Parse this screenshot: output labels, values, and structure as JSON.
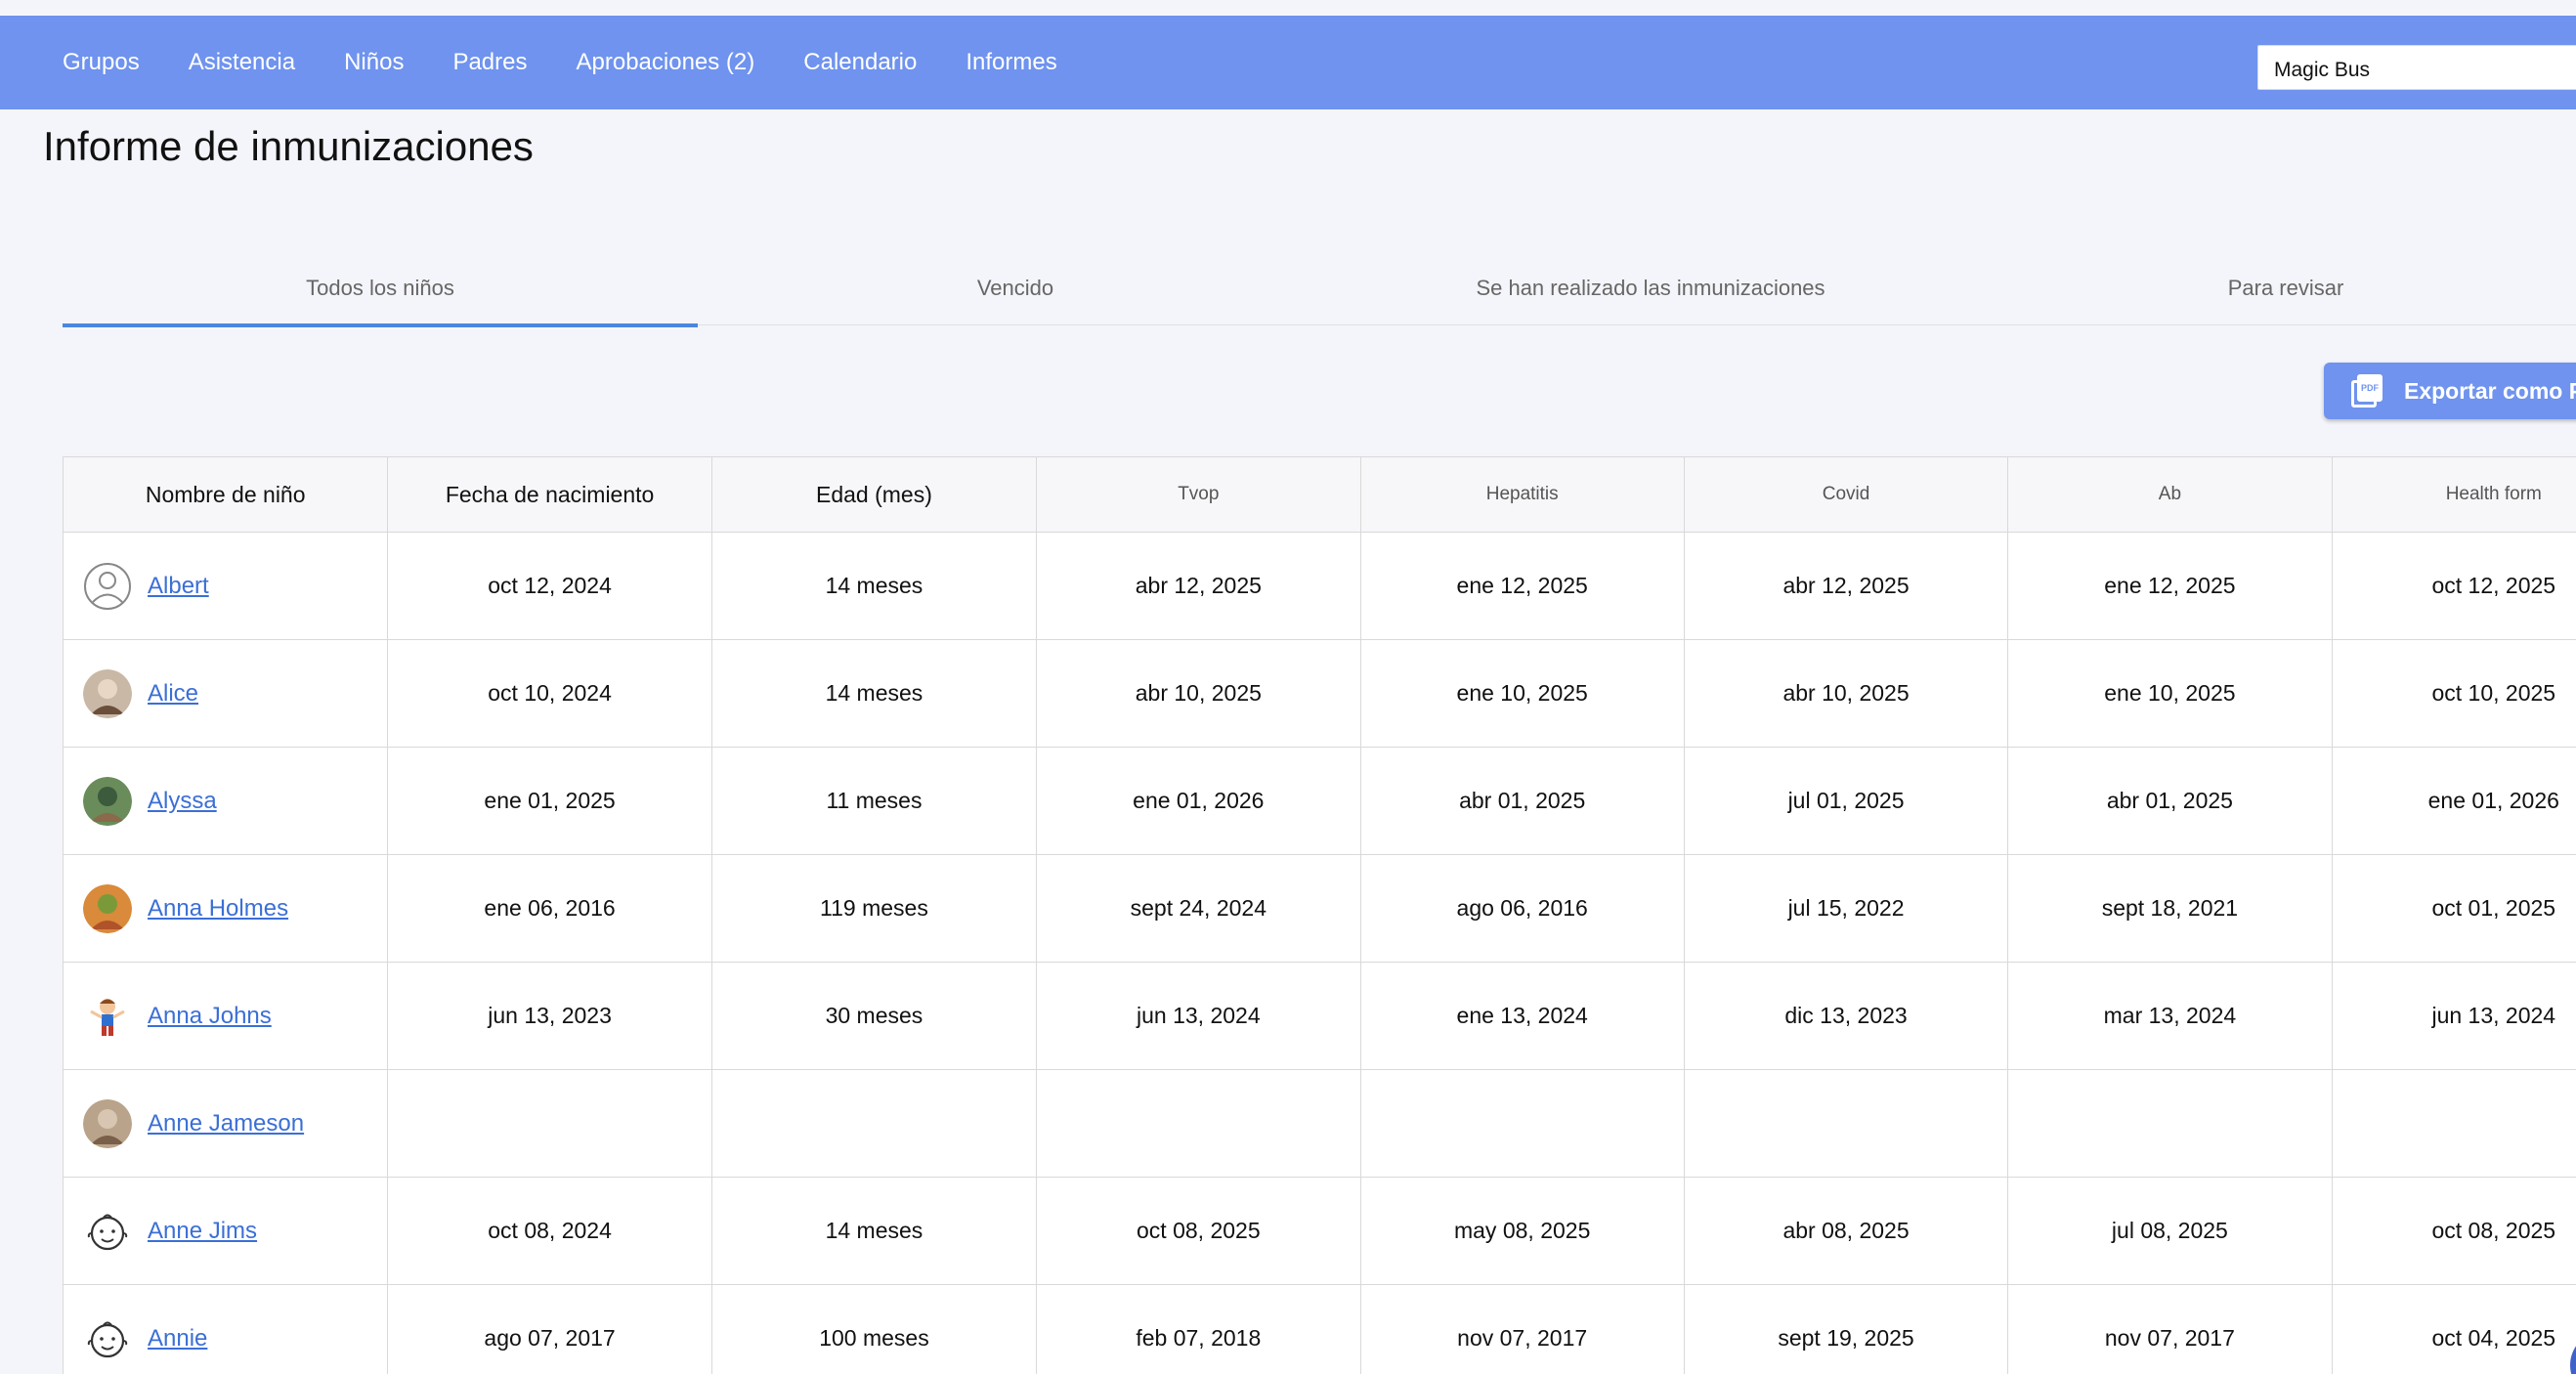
{
  "nav": {
    "items": [
      "Grupos",
      "Asistencia",
      "Niños",
      "Padres",
      "Aprobaciones (2)",
      "Calendario",
      "Informes"
    ],
    "org_selector": "Magic Bus"
  },
  "page": {
    "title": "Informe de inmunizaciones"
  },
  "tabs": [
    {
      "label": "Todos los niños",
      "active": true
    },
    {
      "label": "Vencido",
      "active": false
    },
    {
      "label": "Se han realizado las inmunizaciones",
      "active": false
    },
    {
      "label": "Para revisar",
      "active": false
    }
  ],
  "export": {
    "label": "Exportar como PDF",
    "icon": "pdf-icon"
  },
  "table": {
    "headers": [
      "Nombre de niño",
      "Fecha de nacimiento",
      "Edad (mes)"
    ],
    "immunizations": [
      "Tvop",
      "Hepatitis",
      "Covid",
      "Ab",
      "Health form"
    ],
    "status_colors": {
      "overdue": "#f6c2ae",
      "upcoming": "#faecc6",
      "done": "#edf7ec"
    },
    "rows": [
      {
        "name": "Albert",
        "avatar": "person-outline-icon",
        "dob": "oct 12, 2024",
        "age": "14 meses",
        "cells": [
          {
            "date": "abr 12, 2025",
            "status": "overdue"
          },
          {
            "date": "ene 12, 2025",
            "status": "overdue"
          },
          {
            "date": "abr 12, 2025",
            "status": "overdue"
          },
          {
            "date": "ene 12, 2025",
            "status": "overdue"
          },
          {
            "date": "oct 12, 2025",
            "status": "overdue"
          }
        ]
      },
      {
        "name": "Alice",
        "avatar": "photo-avatar",
        "dob": "oct 10, 2024",
        "age": "14 meses",
        "cells": [
          {
            "date": "abr 10, 2025",
            "status": "overdue"
          },
          {
            "date": "ene 10, 2025",
            "status": "overdue"
          },
          {
            "date": "abr 10, 2025",
            "status": "overdue"
          },
          {
            "date": "ene 10, 2025",
            "status": "overdue"
          },
          {
            "date": "oct 10, 2025",
            "status": "overdue"
          }
        ]
      },
      {
        "name": "Alyssa",
        "avatar": "photo-avatar",
        "dob": "ene 01, 2025",
        "age": "11 meses",
        "cells": [
          {
            "date": "ene 01, 2026",
            "status": "upcoming"
          },
          {
            "date": "abr 01, 2025",
            "status": "overdue"
          },
          {
            "date": "jul 01, 2025",
            "status": "overdue"
          },
          {
            "date": "abr 01, 2025",
            "status": "overdue"
          },
          {
            "date": "ene 01, 2026",
            "status": "upcoming"
          }
        ]
      },
      {
        "name": "Anna Holmes",
        "avatar": "photo-avatar",
        "dob": "ene 06, 2016",
        "age": "119 meses",
        "cells": [
          {
            "date": "sept 24, 2024",
            "status": "done"
          },
          {
            "date": "ago 06, 2016",
            "status": "overdue"
          },
          {
            "date": "jul 15, 2022",
            "status": "done"
          },
          {
            "date": "sept 18, 2021",
            "status": "done"
          },
          {
            "date": "oct 01, 2025",
            "status": "done"
          }
        ]
      },
      {
        "name": "Anna Johns",
        "avatar": "cartoon-avatar",
        "dob": "jun 13, 2023",
        "age": "30 meses",
        "cells": [
          {
            "date": "jun 13, 2024",
            "status": "overdue"
          },
          {
            "date": "ene 13, 2024",
            "status": "overdue"
          },
          {
            "date": "dic 13, 2023",
            "status": "overdue"
          },
          {
            "date": "mar 13, 2024",
            "status": "overdue"
          },
          {
            "date": "jun 13, 2024",
            "status": "overdue"
          }
        ]
      },
      {
        "name": "Anne Jameson",
        "avatar": "photo-avatar",
        "dob": "",
        "age": "",
        "cells": [
          {
            "date": "",
            "status": "overdue"
          },
          {
            "date": "",
            "status": "overdue"
          },
          {
            "date": "",
            "status": "overdue"
          },
          {
            "date": "",
            "status": "overdue"
          },
          {
            "date": "",
            "status": "overdue"
          }
        ]
      },
      {
        "name": "Anne Jims",
        "avatar": "baby-face-icon",
        "dob": "oct 08, 2024",
        "age": "14 meses",
        "cells": [
          {
            "date": "oct 08, 2025",
            "status": "overdue"
          },
          {
            "date": "may 08, 2025",
            "status": "overdue"
          },
          {
            "date": "abr 08, 2025",
            "status": "overdue"
          },
          {
            "date": "jul 08, 2025",
            "status": "overdue"
          },
          {
            "date": "oct 08, 2025",
            "status": "overdue"
          }
        ]
      },
      {
        "name": "Annie",
        "avatar": "baby-face-icon",
        "dob": "ago 07, 2017",
        "age": "100 meses",
        "cells": [
          {
            "date": "feb 07, 2018",
            "status": "overdue"
          },
          {
            "date": "nov 07, 2017",
            "status": "overdue"
          },
          {
            "date": "sept 19, 2025",
            "status": "done"
          },
          {
            "date": "nov 07, 2017",
            "status": "overdue"
          },
          {
            "date": "oct 04, 2025",
            "status": "done"
          }
        ]
      }
    ]
  }
}
